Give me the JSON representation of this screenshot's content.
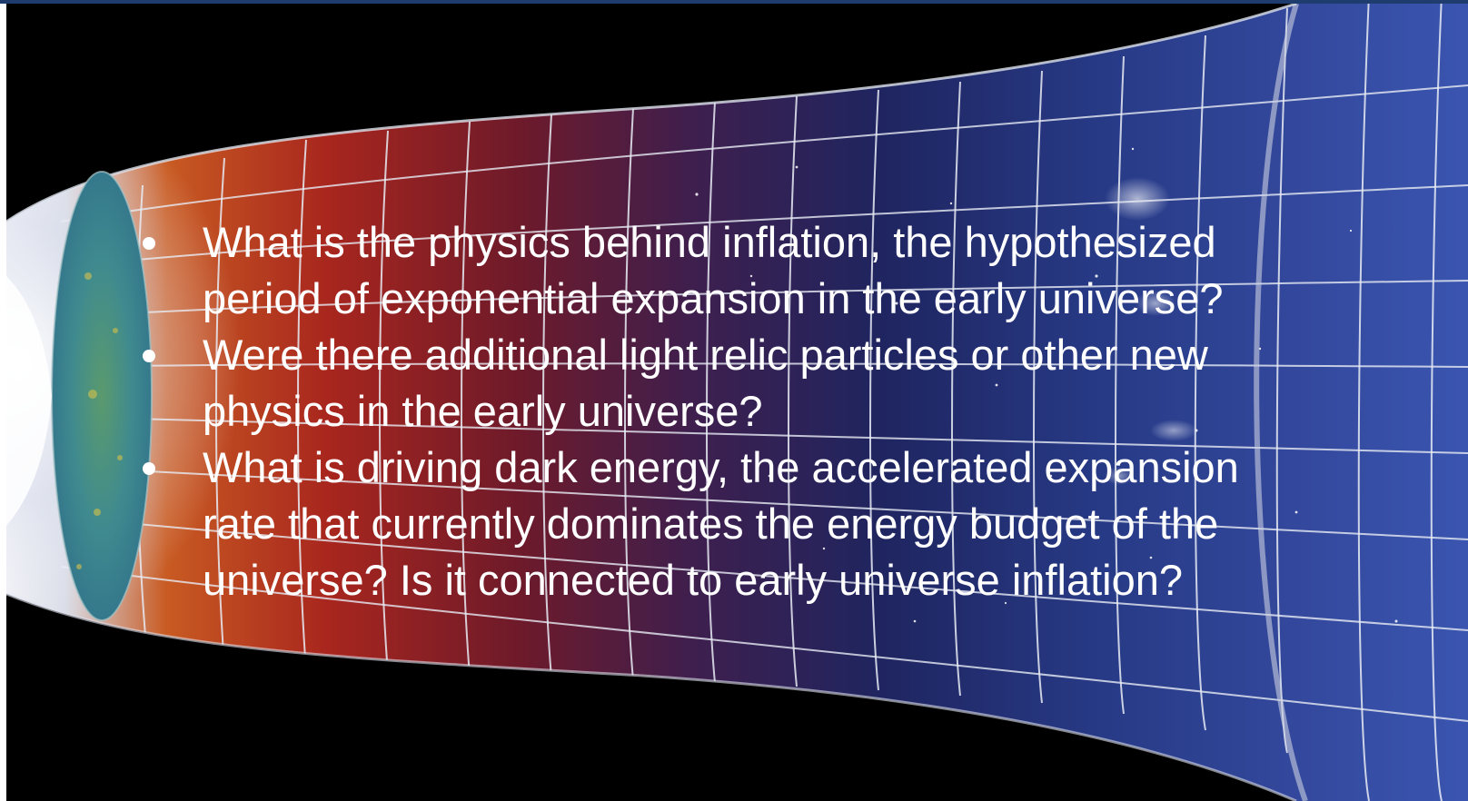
{
  "colors": {
    "background": "#000000",
    "top_strip": "#1e3c6e",
    "left_strip": "#ffffff",
    "text": "#ffffff",
    "grid": "#e8ecf4",
    "cmb_disk": "#3f8f8a",
    "early_glow": "#c8401e",
    "late_space": "#2a3f8f"
  },
  "background_image": {
    "icon": "expanding-universe-grid-illustration"
  },
  "bullets": [
    {
      "lines": [
        "What is the physics behind inflation, the hypothesized",
        "period of exponential expansion in the early universe?"
      ]
    },
    {
      "lines": [
        "Were there additional light relic particles or other new",
        "physics in the early universe?"
      ]
    },
    {
      "lines": [
        "What is driving dark energy, the accelerated expansion",
        "rate that currently dominates the energy budget of the",
        "universe? Is it connected to early universe inflation?"
      ]
    }
  ]
}
